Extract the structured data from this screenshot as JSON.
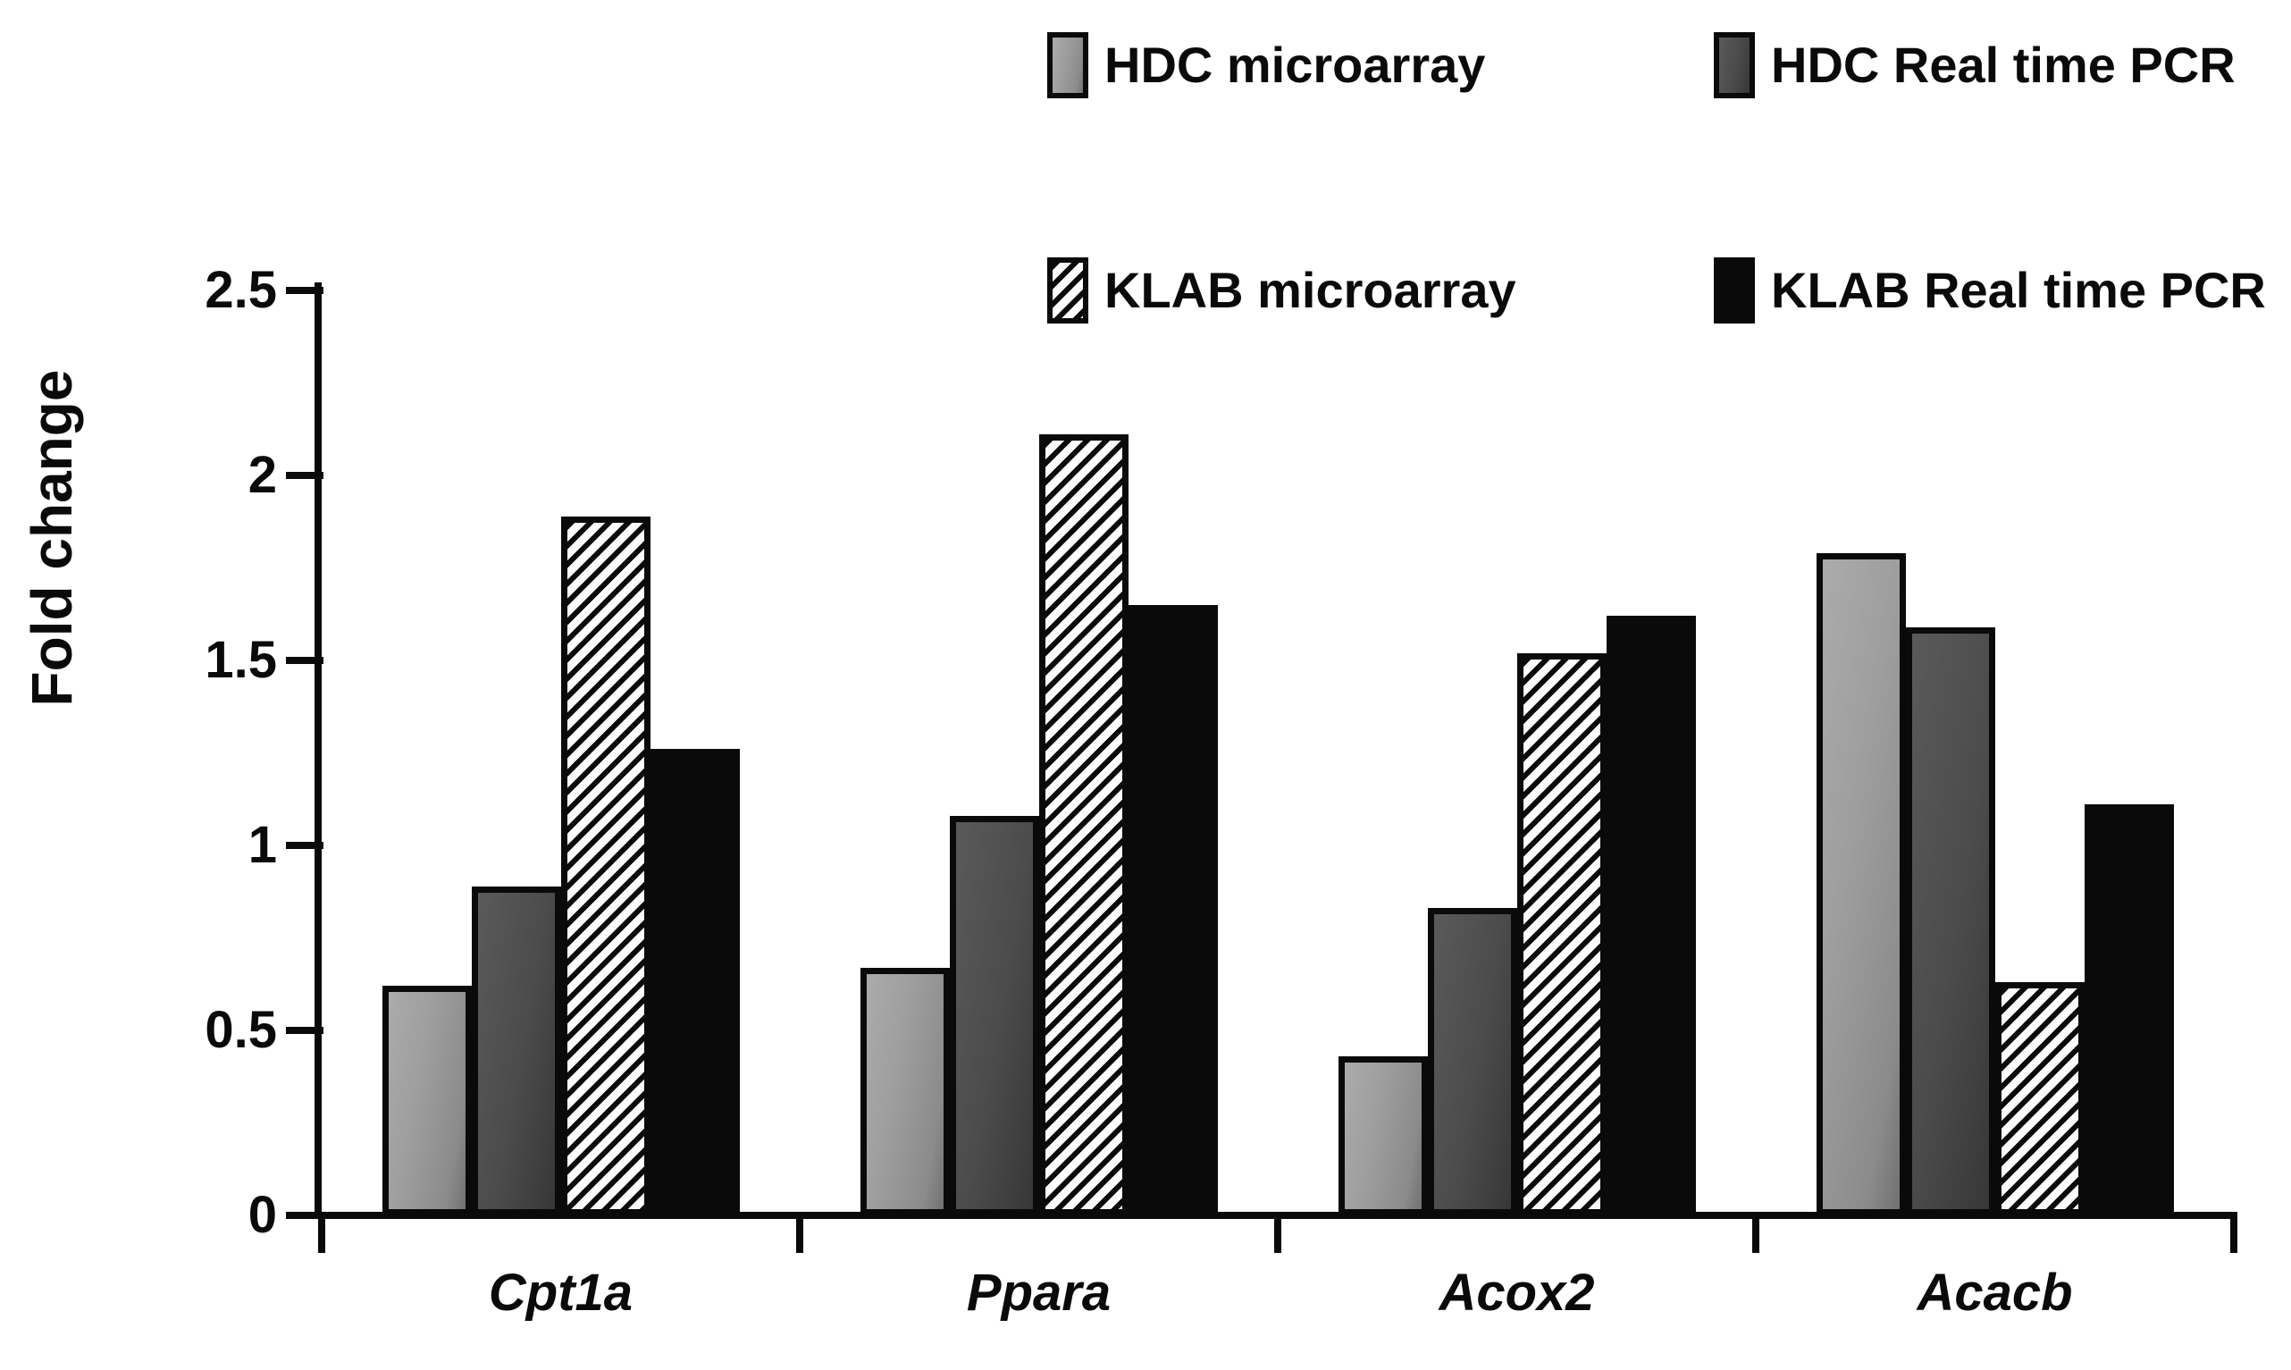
{
  "chart_data": {
    "type": "bar",
    "title": "",
    "ylabel": "Fold change",
    "xlabel": "",
    "ylim": [
      0,
      2.5
    ],
    "yticks": [
      0,
      0.5,
      1,
      1.5,
      2,
      2.5
    ],
    "ytick_labels": [
      "0",
      "0.5",
      "1",
      "1.5",
      "2",
      "2.5"
    ],
    "categories": [
      "Cpt1a",
      "Ppara",
      "Acox2",
      "Acacb"
    ],
    "series": [
      {
        "name": "HDC microarray",
        "style": "light-gray",
        "values": [
          0.62,
          0.67,
          0.43,
          1.79
        ]
      },
      {
        "name": "HDC Real time PCR",
        "style": "dark-gray",
        "values": [
          0.89,
          1.08,
          0.83,
          1.59
        ]
      },
      {
        "name": "KLAB microarray",
        "style": "hatched",
        "values": [
          1.89,
          2.11,
          1.52,
          0.63
        ]
      },
      {
        "name": "KLAB Real time PCR",
        "style": "black",
        "values": [
          1.26,
          1.65,
          1.62,
          1.11
        ]
      }
    ],
    "legend_position": "top-right",
    "grid": false
  },
  "colors": {
    "axis": "#0a0a0a",
    "bar_light_gray": "#9a9a9a",
    "bar_dark_gray": "#4b4b4b",
    "bar_black": "#0a0a0a",
    "hatch_foreground": "#0a0a0a",
    "hatch_background": "#fcfcfc",
    "background": "#ffffff"
  }
}
